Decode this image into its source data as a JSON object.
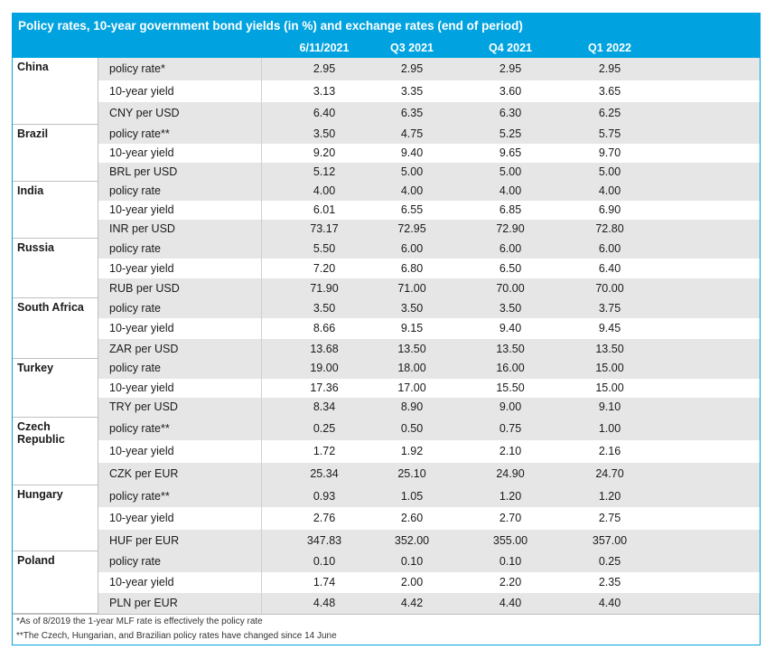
{
  "title": "Policy rates, 10-year government bond yields (in %) and exchange rates (end of period)",
  "columns": [
    "6/11/2021",
    "Q3 2021",
    "Q4 2021",
    "Q1 2022"
  ],
  "groups": [
    {
      "country": "China",
      "rows": [
        {
          "label": "policy rate*",
          "values": [
            "2.95",
            "2.95",
            "2.95",
            "2.95"
          ]
        },
        {
          "label": "10-year yield",
          "values": [
            "3.13",
            "3.35",
            "3.60",
            "3.65"
          ]
        },
        {
          "label": "CNY per USD",
          "values": [
            "6.40",
            "6.35",
            "6.30",
            "6.25"
          ]
        }
      ]
    },
    {
      "country": "Brazil",
      "rows": [
        {
          "label": "policy rate**",
          "values": [
            "3.50",
            "4.75",
            "5.25",
            "5.75"
          ]
        },
        {
          "label": "10-year yield",
          "values": [
            "9.20",
            "9.40",
            "9.65",
            "9.70"
          ]
        },
        {
          "label": "BRL per USD",
          "values": [
            "5.12",
            "5.00",
            "5.00",
            "5.00"
          ]
        }
      ]
    },
    {
      "country": "India",
      "rows": [
        {
          "label": "policy rate",
          "values": [
            "4.00",
            "4.00",
            "4.00",
            "4.00"
          ]
        },
        {
          "label": "10-year yield",
          "values": [
            "6.01",
            "6.55",
            "6.85",
            "6.90"
          ]
        },
        {
          "label": "INR per USD",
          "values": [
            "73.17",
            "72.95",
            "72.90",
            "72.80"
          ]
        }
      ]
    },
    {
      "country": "Russia",
      "rows": [
        {
          "label": "policy rate",
          "values": [
            "5.50",
            "6.00",
            "6.00",
            "6.00"
          ]
        },
        {
          "label": "10-year yield",
          "values": [
            "7.20",
            "6.80",
            "6.50",
            "6.40"
          ]
        },
        {
          "label": "RUB per USD",
          "values": [
            "71.90",
            "71.00",
            "70.00",
            "70.00"
          ]
        }
      ]
    },
    {
      "country": "South Africa",
      "rows": [
        {
          "label": "policy rate",
          "values": [
            "3.50",
            "3.50",
            "3.50",
            "3.75"
          ]
        },
        {
          "label": "10-year yield",
          "values": [
            "8.66",
            "9.15",
            "9.40",
            "9.45"
          ]
        },
        {
          "label": "ZAR per USD",
          "values": [
            "13.68",
            "13.50",
            "13.50",
            "13.50"
          ]
        }
      ]
    },
    {
      "country": "Turkey",
      "rows": [
        {
          "label": "policy rate",
          "values": [
            "19.00",
            "18.00",
            "16.00",
            "15.00"
          ]
        },
        {
          "label": "10-year yield",
          "values": [
            "17.36",
            "17.00",
            "15.50",
            "15.00"
          ]
        },
        {
          "label": "TRY per USD",
          "values": [
            "8.34",
            "8.90",
            "9.00",
            "9.10"
          ]
        }
      ]
    },
    {
      "country": "Czech Republic",
      "rows": [
        {
          "label": "policy rate**",
          "values": [
            "0.25",
            "0.50",
            "0.75",
            "1.00"
          ]
        },
        {
          "label": "10-year yield",
          "values": [
            "1.72",
            "1.92",
            "2.10",
            "2.16"
          ]
        },
        {
          "label": "CZK per EUR",
          "values": [
            "25.34",
            "25.10",
            "24.90",
            "24.70"
          ]
        }
      ]
    },
    {
      "country": "Hungary",
      "rows": [
        {
          "label": "policy rate**",
          "values": [
            "0.93",
            "1.05",
            "1.20",
            "1.20"
          ]
        },
        {
          "label": "10-year yield",
          "values": [
            "2.76",
            "2.60",
            "2.70",
            "2.75"
          ]
        },
        {
          "label": "HUF per EUR",
          "values": [
            "347.83",
            "352.00",
            "355.00",
            "357.00"
          ]
        }
      ]
    },
    {
      "country": "Poland",
      "rows": [
        {
          "label": "policy rate",
          "values": [
            "0.10",
            "0.10",
            "0.10",
            "0.25"
          ]
        },
        {
          "label": "10-year yield",
          "values": [
            "1.74",
            "2.00",
            "2.20",
            "2.35"
          ]
        },
        {
          "label": "PLN per EUR",
          "values": [
            "4.48",
            "4.42",
            "4.40",
            "4.40"
          ]
        }
      ]
    }
  ],
  "footnotes": [
    "*As of 8/2019 the 1-year MLF rate is effectively the policy rate",
    "**The Czech, Hungarian, and Brazilian policy rates have changed since 14 June"
  ],
  "colors": {
    "header_bg": "#00a3e0",
    "row_shade": "#e6e6e6",
    "header_text": "#ffffff"
  }
}
